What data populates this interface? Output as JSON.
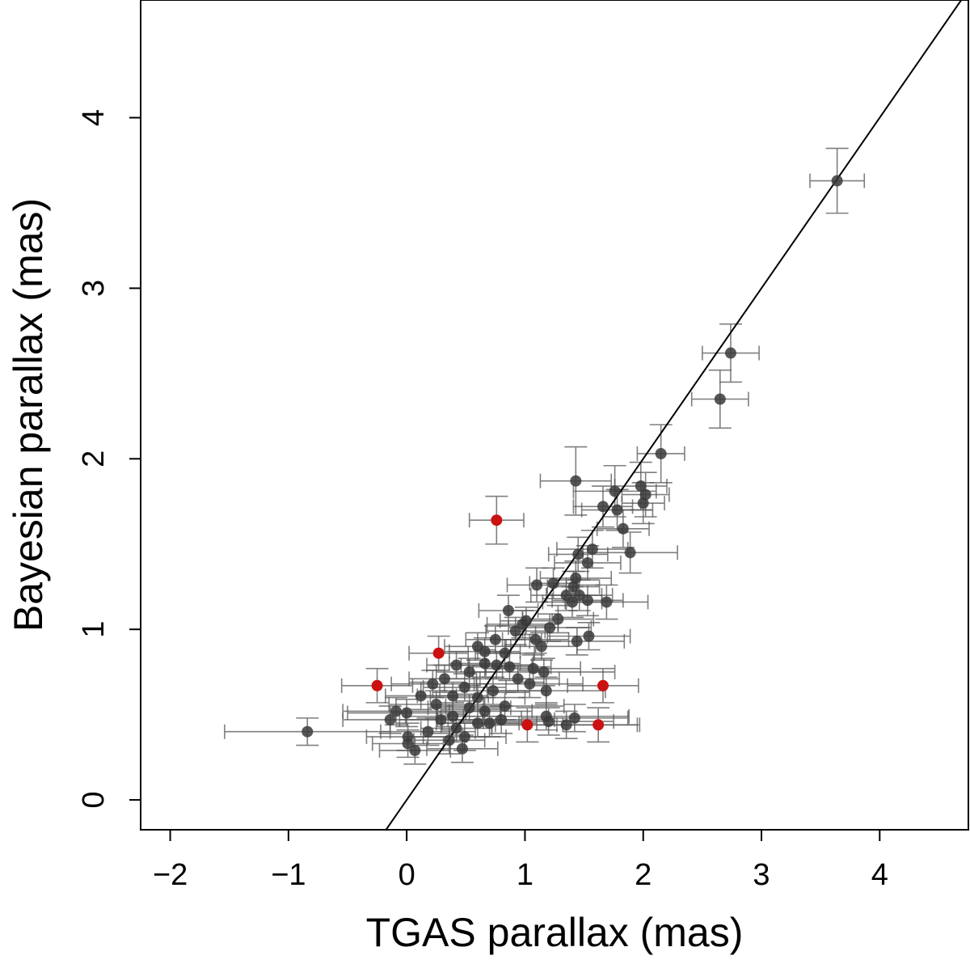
{
  "chart_data": {
    "type": "scatter",
    "xlabel": "TGAS parallax (mas)",
    "ylabel": "Bayesian parallax (mas)",
    "xlim": [
      -2.25,
      4.75
    ],
    "ylim": [
      -0.175,
      4.69
    ],
    "xticks": [
      {
        "value": -2,
        "label": "−2"
      },
      {
        "value": -1,
        "label": "−1"
      },
      0,
      1,
      2,
      3,
      4
    ],
    "yticks": [
      0,
      1,
      2,
      3,
      4
    ],
    "series": [
      {
        "color": "#3a3a3a",
        "x": [
          3.64,
          2.74,
          2.65,
          2.15,
          1.43,
          1.98,
          2.02,
          2.0,
          1.76,
          1.66,
          1.78,
          1.83,
          1.89,
          1.57,
          1.45,
          1.53,
          1.69,
          1.1,
          1.24,
          1.43,
          1.41,
          1.46,
          1.35,
          1.4,
          1.53,
          0.86,
          1.01,
          0.98,
          0.92,
          1.28,
          1.21,
          1.09,
          1.14,
          1.44,
          1.54,
          0.75,
          0.66,
          0.6,
          0.83,
          0.76,
          0.87,
          1.07,
          0.94,
          1.04,
          0.66,
          0.53,
          0.42,
          0.32,
          0.22,
          0.12,
          0.25,
          0.39,
          0.49,
          0.6,
          0.73,
          0.83,
          0.66,
          0.53,
          0.39,
          0.29,
          0.42,
          0.49,
          0.36,
          0.18,
          0.01,
          0.01,
          0.07,
          -0.09,
          -0.14,
          0.0,
          -0.84,
          1.16,
          1.18,
          1.18,
          1.42,
          1.35,
          1.2,
          0.8,
          0.7,
          0.6,
          0.47
        ],
        "values": [
          3.63,
          2.62,
          2.35,
          2.03,
          1.87,
          1.84,
          1.79,
          1.74,
          1.81,
          1.72,
          1.7,
          1.59,
          1.45,
          1.47,
          1.44,
          1.39,
          1.16,
          1.26,
          1.27,
          1.3,
          1.25,
          1.2,
          1.2,
          1.16,
          1.17,
          1.11,
          1.05,
          1.03,
          0.99,
          1.06,
          1.01,
          0.94,
          0.9,
          0.93,
          0.96,
          0.94,
          0.87,
          0.9,
          0.86,
          0.79,
          0.78,
          0.77,
          0.71,
          0.68,
          0.8,
          0.75,
          0.79,
          0.71,
          0.68,
          0.61,
          0.56,
          0.61,
          0.66,
          0.6,
          0.64,
          0.55,
          0.52,
          0.54,
          0.49,
          0.47,
          0.42,
          0.37,
          0.35,
          0.4,
          0.37,
          0.33,
          0.29,
          0.52,
          0.47,
          0.51,
          0.4,
          0.75,
          0.64,
          0.49,
          0.48,
          0.44,
          0.46,
          0.47,
          0.45,
          0.45,
          0.3
        ],
        "xerr": [
          0.23,
          0.24,
          0.24,
          0.2,
          0.3,
          0.22,
          0.2,
          0.18,
          0.35,
          0.25,
          0.3,
          0.22,
          0.4,
          0.3,
          0.25,
          0.28,
          0.35,
          0.25,
          0.2,
          0.3,
          0.22,
          0.28,
          0.3,
          0.25,
          0.3,
          0.25,
          0.22,
          0.3,
          0.25,
          0.3,
          0.35,
          0.28,
          0.3,
          0.4,
          0.35,
          0.25,
          0.3,
          0.28,
          0.25,
          0.3,
          0.35,
          0.4,
          0.35,
          0.45,
          0.3,
          0.28,
          0.25,
          0.3,
          0.35,
          0.3,
          0.4,
          0.3,
          0.35,
          0.4,
          0.45,
          0.5,
          0.4,
          0.35,
          0.4,
          0.35,
          0.3,
          0.35,
          0.3,
          0.4,
          0.35,
          0.3,
          0.3,
          0.45,
          0.4,
          0.5,
          0.7,
          0.6,
          0.5,
          0.7,
          0.45,
          0.6,
          0.55,
          0.45,
          0.4,
          0.35,
          0.3
        ],
        "yerr": [
          0.19,
          0.17,
          0.17,
          0.17,
          0.2,
          0.14,
          0.13,
          0.12,
          0.15,
          0.12,
          0.12,
          0.11,
          0.12,
          0.11,
          0.1,
          0.1,
          0.1,
          0.1,
          0.09,
          0.1,
          0.09,
          0.09,
          0.09,
          0.09,
          0.09,
          0.09,
          0.08,
          0.08,
          0.08,
          0.08,
          0.08,
          0.08,
          0.08,
          0.08,
          0.08,
          0.08,
          0.08,
          0.08,
          0.08,
          0.08,
          0.08,
          0.08,
          0.08,
          0.08,
          0.08,
          0.08,
          0.08,
          0.08,
          0.08,
          0.08,
          0.08,
          0.08,
          0.08,
          0.08,
          0.08,
          0.08,
          0.08,
          0.08,
          0.08,
          0.08,
          0.08,
          0.08,
          0.08,
          0.08,
          0.08,
          0.08,
          0.08,
          0.08,
          0.08,
          0.08,
          0.08,
          0.08,
          0.08,
          0.08,
          0.08,
          0.08,
          0.08,
          0.08,
          0.08,
          0.08,
          0.08
        ]
      },
      {
        "color": "#cc1111",
        "x": [
          0.76,
          0.27,
          -0.25,
          1.66,
          1.02,
          1.62
        ],
        "values": [
          1.64,
          0.86,
          0.67,
          0.67,
          0.44,
          0.44
        ],
        "xerr": [
          0.23,
          0.25,
          0.3,
          0.3,
          0.3,
          0.35
        ],
        "yerr": [
          0.14,
          0.1,
          0.1,
          0.1,
          0.1,
          0.1
        ]
      }
    ]
  }
}
